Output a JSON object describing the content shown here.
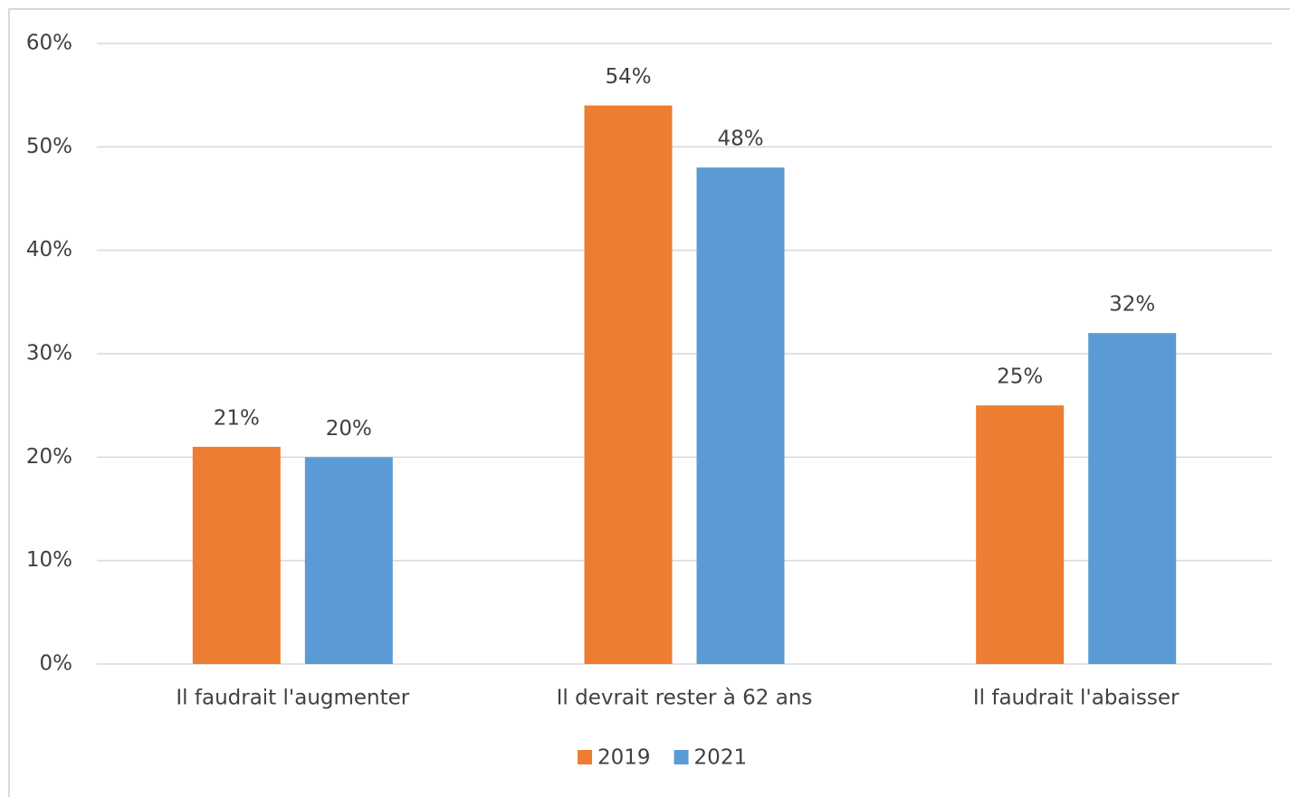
{
  "chart_data": {
    "type": "bar",
    "categories": [
      "Il faudrait l'augmenter",
      "Il devrait rester à 62 ans",
      "Il faudrait l'abaisser"
    ],
    "series": [
      {
        "name": "2019",
        "color": "#ed7d31",
        "values": [
          21,
          54,
          25
        ],
        "value_labels": [
          "21%",
          "54%",
          "25%"
        ]
      },
      {
        "name": "2021",
        "color": "#5b9bd5",
        "values": [
          20,
          48,
          32
        ],
        "value_labels": [
          "20%",
          "48%",
          "32%"
        ]
      }
    ],
    "ylim": [
      0,
      60
    ],
    "yticks": [
      {
        "value": 0,
        "label": "0%"
      },
      {
        "value": 10,
        "label": "10%"
      },
      {
        "value": 20,
        "label": "20%"
      },
      {
        "value": 30,
        "label": "30%"
      },
      {
        "value": 40,
        "label": "40%"
      },
      {
        "value": 50,
        "label": "50%"
      },
      {
        "value": 60,
        "label": "60%"
      }
    ],
    "grid": true,
    "legend": "bottom"
  }
}
